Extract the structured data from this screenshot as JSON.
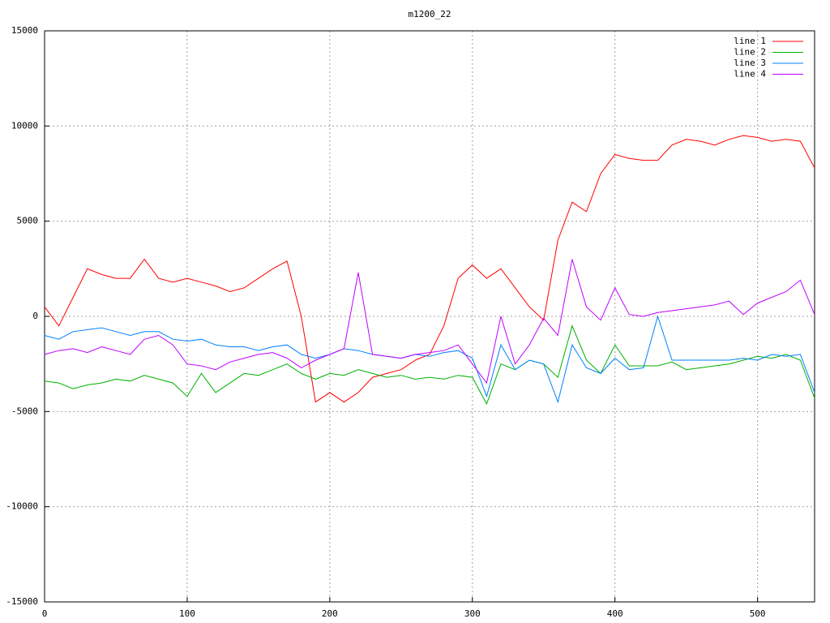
{
  "chart_data": {
    "type": "line",
    "title": "m1200_22",
    "x": [
      0,
      10,
      20,
      30,
      40,
      50,
      60,
      70,
      80,
      90,
      100,
      110,
      120,
      130,
      140,
      150,
      160,
      170,
      180,
      190,
      200,
      210,
      220,
      230,
      240,
      250,
      260,
      270,
      280,
      290,
      300,
      310,
      320,
      330,
      340,
      350,
      360,
      370,
      380,
      390,
      400,
      410,
      420,
      430,
      440,
      450,
      460,
      470,
      480,
      490,
      500,
      510,
      520,
      530,
      540
    ],
    "series": [
      {
        "name": "line 1",
        "color": "#ff0000",
        "values": [
          500,
          -500,
          1000,
          2500,
          2200,
          2000,
          2000,
          3000,
          2000,
          1800,
          2000,
          1800,
          1600,
          1300,
          1500,
          2000,
          2500,
          2900,
          0,
          -4500,
          -4000,
          -4500,
          -4000,
          -3200,
          -3000,
          -2800,
          -2300,
          -2000,
          -500,
          2000,
          2700,
          2000,
          2500,
          1500,
          500,
          -200,
          4000,
          6000,
          5500,
          7500,
          8500,
          8300,
          8200,
          8200,
          9000,
          9300,
          9200,
          9000,
          9300,
          9500,
          9400,
          9200,
          9300,
          9200,
          7800
        ]
      },
      {
        "name": "line 2",
        "color": "#00b000",
        "values": [
          -3400,
          -3500,
          -3800,
          -3600,
          -3500,
          -3300,
          -3400,
          -3100,
          -3300,
          -3500,
          -4200,
          -3000,
          -4000,
          -3500,
          -3000,
          -3100,
          -2800,
          -2500,
          -3000,
          -3300,
          -3000,
          -3100,
          -2800,
          -3000,
          -3200,
          -3100,
          -3300,
          -3200,
          -3300,
          -3100,
          -3200,
          -4600,
          -2500,
          -2800,
          -2300,
          -2500,
          -3200,
          -500,
          -2300,
          -3000,
          -1500,
          -2600,
          -2600,
          -2600,
          -2400,
          -2800,
          -2700,
          -2600,
          -2500,
          -2300,
          -2100,
          -2200,
          -2000,
          -2300,
          -4300
        ]
      },
      {
        "name": "line 3",
        "color": "#0080ff",
        "values": [
          -1000,
          -1200,
          -800,
          -700,
          -600,
          -800,
          -1000,
          -800,
          -800,
          -1200,
          -1300,
          -1200,
          -1500,
          -1600,
          -1600,
          -1800,
          -1600,
          -1500,
          -2000,
          -2200,
          -2000,
          -1700,
          -1800,
          -2000,
          -2100,
          -2200,
          -2000,
          -2100,
          -1900,
          -1800,
          -2200,
          -4200,
          -1500,
          -2800,
          -2300,
          -2500,
          -4500,
          -1500,
          -2700,
          -3000,
          -2200,
          -2800,
          -2700,
          0,
          -2300,
          -2300,
          -2300,
          -2300,
          -2300,
          -2200,
          -2300,
          -2000,
          -2100,
          -2000,
          -4000
        ]
      },
      {
        "name": "line 4",
        "color": "#c000ff",
        "values": [
          -2000,
          -1800,
          -1700,
          -1900,
          -1600,
          -1800,
          -2000,
          -1200,
          -1000,
          -1500,
          -2500,
          -2600,
          -2800,
          -2400,
          -2200,
          -2000,
          -1900,
          -2200,
          -2700,
          -2300,
          -2000,
          -1700,
          2300,
          -2000,
          -2100,
          -2200,
          -2000,
          -1900,
          -1800,
          -1500,
          -2500,
          -3500,
          0,
          -2500,
          -1500,
          -100,
          -1000,
          3000,
          500,
          -200,
          1500,
          100,
          0,
          200,
          300,
          400,
          500,
          600,
          800,
          100,
          700,
          1000,
          1300,
          1900,
          100
        ]
      }
    ],
    "xlim": [
      0,
      540
    ],
    "xticks": [
      0,
      100,
      200,
      300,
      400,
      500
    ],
    "ylim": [
      -15000,
      15000
    ],
    "yticks": [
      -15000,
      -10000,
      -5000,
      0,
      5000,
      10000,
      15000
    ],
    "grid": true,
    "legend": "top-right"
  }
}
